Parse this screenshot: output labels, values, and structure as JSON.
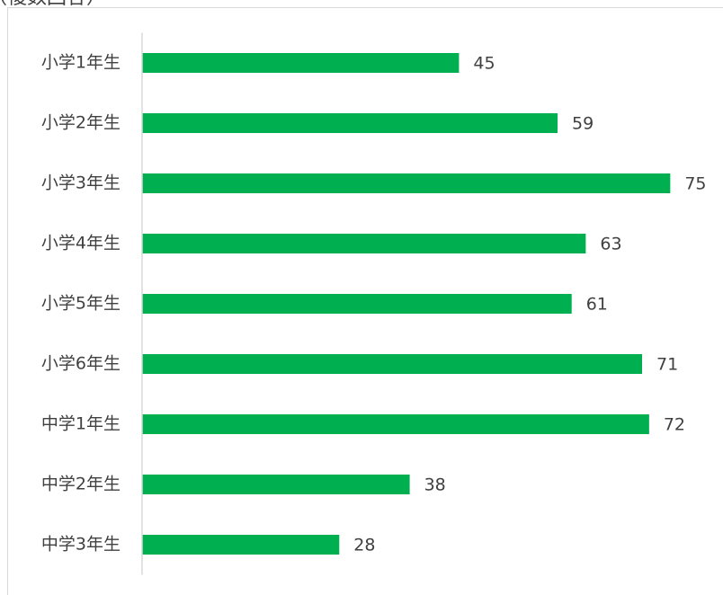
{
  "chart_data": {
    "type": "bar",
    "orientation": "horizontal",
    "subtitle": "（複数回答）",
    "categories": [
      "小学1年生",
      "小学2年生",
      "小学3年生",
      "小学4年生",
      "小学5年生",
      "小学6年生",
      "中学1年生",
      "中学2年生",
      "中学3年生"
    ],
    "values": [
      45,
      59,
      75,
      63,
      61,
      71,
      72,
      38,
      28
    ],
    "color": "#00b050",
    "xlim": [
      0,
      80
    ],
    "grid": false
  }
}
